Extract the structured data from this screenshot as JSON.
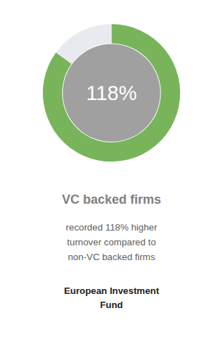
{
  "chart_data": {
    "type": "donut",
    "title": "VC backed firms",
    "subtitle": "recorded 118% higher\nturnover compared to\nnon-VC backed firms",
    "values": [
      85,
      15
    ],
    "colors": [
      "#77b45a",
      "#e8eaf0"
    ],
    "annotations": [
      "118%",
      "European Investment\nFund"
    ]
  }
}
